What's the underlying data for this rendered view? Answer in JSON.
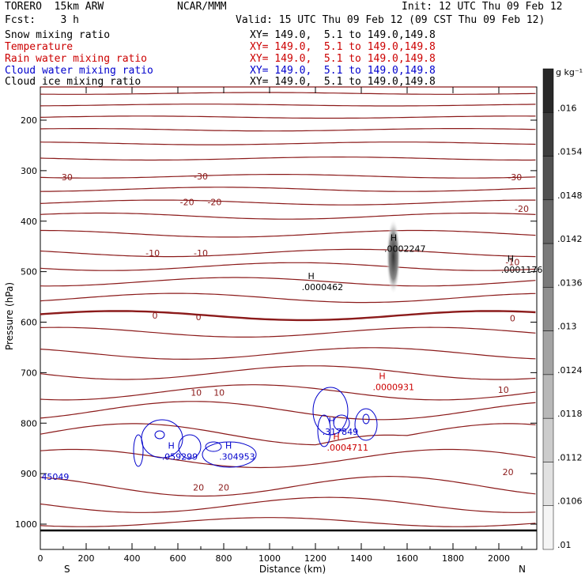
{
  "header": {
    "model": "TORERO  15km ARW",
    "center": "NCAR/MMM",
    "init": "Init: 12 UTC Thu 09 Feb 12",
    "fcst": "Fcst:    3 h",
    "valid": "Valid: 15 UTC Thu 09 Feb 12 (09 CST Thu 09 Feb 12)",
    "fields": [
      {
        "name": "Snow mixing ratio",
        "xy": "XY= 149.0,  5.1 to 149.0,149.8",
        "color": "#000000"
      },
      {
        "name": "Temperature",
        "xy": "XY= 149.0,  5.1 to 149.0,149.8",
        "color": "#cc0000"
      },
      {
        "name": "Rain water mixing ratio",
        "xy": "XY= 149.0,  5.1 to 149.0,149.8",
        "color": "#cc0000"
      },
      {
        "name": "Cloud water mixing ratio",
        "xy": "XY= 149.0,  5.1 to 149.0,149.8",
        "color": "#0000cc"
      },
      {
        "name": "Cloud ice mixing ratio",
        "xy": "XY= 149.0,  5.1 to 149.0,149.8",
        "color": "#000000"
      }
    ]
  },
  "chart_data": {
    "type": "cross-section contour",
    "xlabel": "Distance (km)",
    "ylabel": "Pressure (hPa)",
    "xlim": [
      0,
      2170
    ],
    "ylim": [
      1050,
      110
    ],
    "x_ticks": [
      "0",
      "200",
      "400",
      "600",
      "800",
      "1000",
      "1200",
      "1400",
      "1600",
      "1800",
      "2000"
    ],
    "x_tick_values": [
      0,
      200,
      400,
      600,
      800,
      1000,
      1200,
      1400,
      1600,
      1800,
      2000
    ],
    "y_ticks": [
      "200",
      "300",
      "400",
      "500",
      "600",
      "700",
      "800",
      "900",
      "1000"
    ],
    "y_tick_values": [
      200,
      300,
      400,
      500,
      600,
      700,
      800,
      900,
      1000
    ],
    "end_labels": {
      "left": "S",
      "right": "N"
    },
    "colorbar": {
      "unit": "g kg⁻¹",
      "labels": [
        ".016",
        ".0154",
        ".0148",
        ".0142",
        ".0136",
        ".013",
        ".0124",
        ".0118",
        ".0112",
        ".0106",
        ".01"
      ]
    },
    "temperature_contours": [
      {
        "value": -30,
        "labels": [
          {
            "text": "-30",
            "x": 110,
            "p": 313
          },
          {
            "text": "-30",
            "x": 700,
            "p": 311
          },
          {
            "text": "-30",
            "x": 2070,
            "p": 313
          }
        ]
      },
      {
        "value": -20,
        "labels": [
          {
            "text": "-20",
            "x": 640,
            "p": 362
          },
          {
            "text": "-20",
            "x": 760,
            "p": 362
          },
          {
            "text": "-20",
            "x": 2100,
            "p": 375
          }
        ]
      },
      {
        "value": -10,
        "labels": [
          {
            "text": "-10",
            "x": 490,
            "p": 463
          },
          {
            "text": "-10",
            "x": 700,
            "p": 463
          },
          {
            "text": "-10",
            "x": 2060,
            "p": 481
          }
        ]
      },
      {
        "value": 0,
        "labels": [
          {
            "text": "0",
            "x": 500,
            "p": 587
          },
          {
            "text": "0",
            "x": 690,
            "p": 590
          },
          {
            "text": "0",
            "x": 2060,
            "p": 592
          }
        ]
      },
      {
        "value": 10,
        "labels": [
          {
            "text": "10",
            "x": 680,
            "p": 739
          },
          {
            "text": "10",
            "x": 780,
            "p": 739
          },
          {
            "text": "10",
            "x": 2020,
            "p": 734
          }
        ]
      },
      {
        "value": 20,
        "labels": [
          {
            "text": "20",
            "x": 690,
            "p": 927
          },
          {
            "text": "20",
            "x": 800,
            "p": 927
          },
          {
            "text": "20",
            "x": 2040,
            "p": 897
          }
        ]
      }
    ],
    "maxima": [
      {
        "symbol": "H",
        "value": ".0002247",
        "x": 1500,
        "p": 451,
        "color": "#000000"
      },
      {
        "symbol": "H",
        "value": ".0001176",
        "x": 2010,
        "p": 493,
        "color": "#000000"
      },
      {
        "symbol": "H",
        "value": ".0000462",
        "x": 1140,
        "p": 527,
        "color": "#000000"
      },
      {
        "symbol": "H",
        "value": ".0000931",
        "x": 1450,
        "p": 725,
        "color": "#cc0000"
      },
      {
        "symbol": "H",
        "value": ".317849",
        "x": 1230,
        "p": 814,
        "color": "#0000cc"
      },
      {
        "symbol": "H",
        "value": ".0004711",
        "x": 1250,
        "p": 845,
        "color": "#cc0000"
      },
      {
        "symbol": "H",
        "value": ".059299",
        "x": 530,
        "p": 863,
        "color": "#0000cc"
      },
      {
        "symbol": "H",
        "value": ".304953",
        "x": 780,
        "p": 863,
        "color": "#0000cc"
      },
      {
        "symbol": "",
        "value": "45049",
        "x": 5,
        "p": 903,
        "color": "#0000cc"
      }
    ]
  }
}
